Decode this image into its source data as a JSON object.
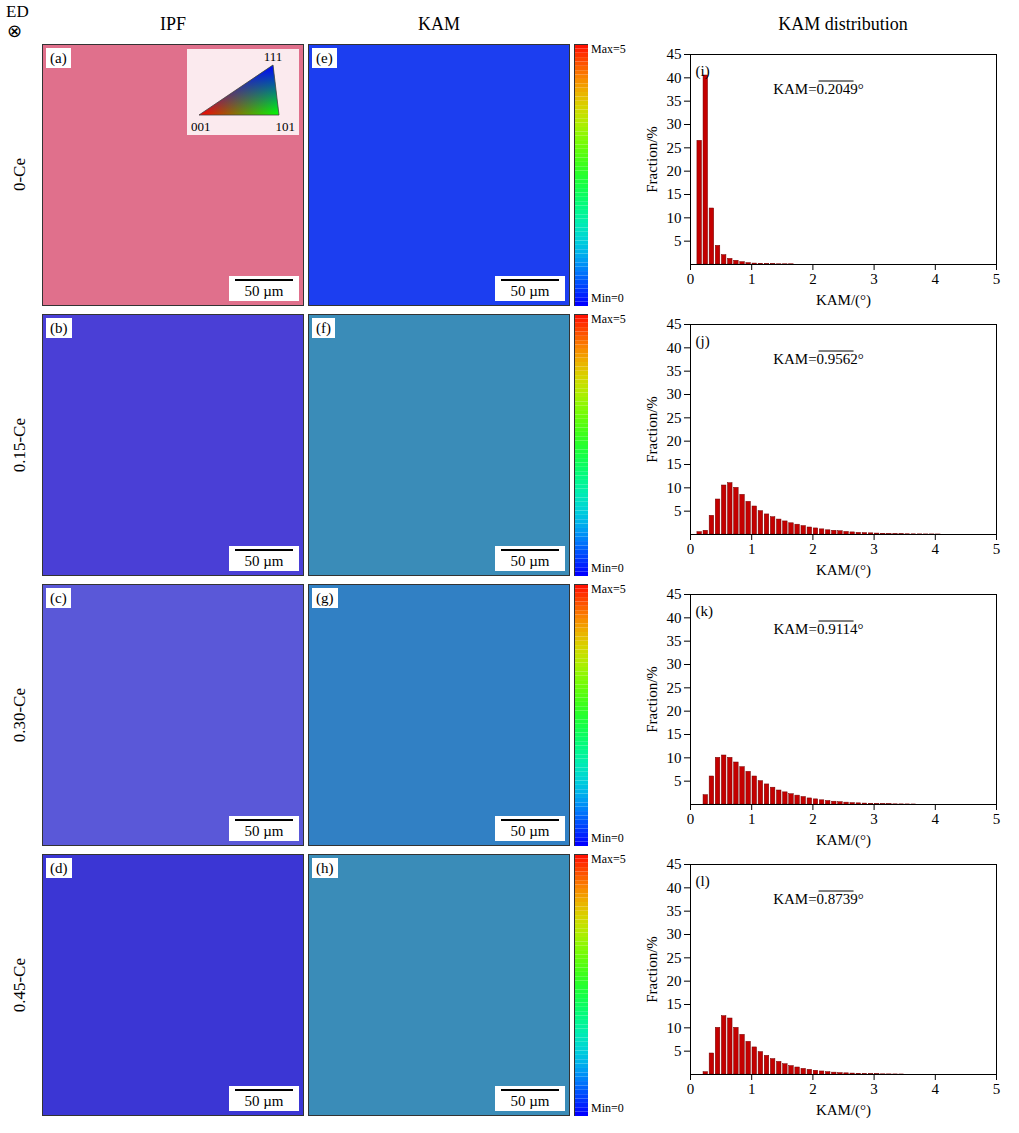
{
  "figure": {
    "corner": {
      "label": "ED",
      "symbol": "⊗"
    },
    "columns": [
      "IPF",
      "KAM",
      "KAM distribution"
    ],
    "ipf_key": [
      "001",
      "101",
      "111"
    ],
    "kam_colorbar": {
      "range": [
        0,
        5
      ],
      "max_label": "Max=5",
      "min_label": "Min=0"
    },
    "rows": [
      {
        "label": "0-Ce",
        "ipf": {
          "panel": "(a)",
          "color": "#e0708c",
          "scale_bar": "50 µm"
        },
        "kam": {
          "panel": "(e)",
          "color": "#1c3ef0",
          "scale_bar": "50 µm"
        }
      },
      {
        "label": "0.15-Ce",
        "ipf": {
          "panel": "(b)",
          "color": "#4a3fd6",
          "scale_bar": "50 µm"
        },
        "kam": {
          "panel": "(f)",
          "color": "#3a8cb8",
          "scale_bar": "50 µm"
        }
      },
      {
        "label": "0.30-Ce",
        "ipf": {
          "panel": "(c)",
          "color": "#5a58d8",
          "scale_bar": "50 µm"
        },
        "kam": {
          "panel": "(g)",
          "color": "#3180c4",
          "scale_bar": "50 µm"
        }
      },
      {
        "label": "0.45-Ce",
        "ipf": {
          "panel": "(d)",
          "color": "#3b36d4",
          "scale_bar": "50 µm"
        },
        "kam": {
          "panel": "(h)",
          "color": "#3a8cb8",
          "scale_bar": "50 µm"
        }
      }
    ]
  },
  "chart_data": [
    {
      "type": "histogram",
      "panel": "(i)",
      "annotation": "KAM=0.2049°",
      "x_label": "KAM/(°)",
      "y_label": "Fraction/%",
      "color": "#c40000",
      "bins": [
        0,
        0.1,
        0.2,
        0.3,
        0.4,
        0.5,
        0.6,
        0.7,
        0.8,
        0.9,
        1,
        1.1,
        1.2,
        1.3,
        1.4,
        1.5,
        1.6,
        1.7,
        1.8,
        1.9,
        2,
        2.1,
        2.2,
        2.3,
        2.4,
        2.5,
        2.6,
        2.7,
        2.8,
        2.9,
        3,
        3.1,
        3.2,
        3.3,
        3.4,
        3.5,
        3.6,
        3.7,
        3.8,
        3.9,
        4,
        4.1,
        4.2,
        4.3,
        4.4,
        4.5,
        4.6,
        4.7,
        4.8,
        4.9,
        5
      ],
      "counts": [
        0,
        26.5,
        40.5,
        12,
        4,
        2,
        1.2,
        0.8,
        0.5,
        0.3,
        0.2,
        0.15,
        0.1,
        0.1,
        0.05,
        0.05,
        0.05,
        0,
        0,
        0,
        0,
        0,
        0,
        0,
        0,
        0,
        0,
        0,
        0,
        0,
        0,
        0,
        0,
        0,
        0,
        0,
        0,
        0,
        0,
        0,
        0,
        0,
        0,
        0,
        0,
        0,
        0,
        0,
        0,
        0
      ],
      "xlim": [
        0,
        5
      ],
      "ylim": [
        0,
        45
      ],
      "xticks": [
        0,
        1,
        2,
        3,
        4,
        5
      ],
      "yticks": [
        5,
        10,
        15,
        20,
        25,
        30,
        35,
        40,
        45
      ]
    },
    {
      "type": "histogram",
      "panel": "(j)",
      "annotation": "KAM=0.9562°",
      "x_label": "KAM/(°)",
      "y_label": "Fraction/%",
      "color": "#c40000",
      "bins": [
        0,
        0.1,
        0.2,
        0.3,
        0.4,
        0.5,
        0.6,
        0.7,
        0.8,
        0.9,
        1,
        1.1,
        1.2,
        1.3,
        1.4,
        1.5,
        1.6,
        1.7,
        1.8,
        1.9,
        2,
        2.1,
        2.2,
        2.3,
        2.4,
        2.5,
        2.6,
        2.7,
        2.8,
        2.9,
        3,
        3.1,
        3.2,
        3.3,
        3.4,
        3.5,
        3.6,
        3.7,
        3.8,
        3.9,
        4,
        4.1,
        4.2,
        4.3,
        4.4,
        4.5,
        4.6,
        4.7,
        4.8,
        4.9,
        5
      ],
      "counts": [
        0,
        0.5,
        0.8,
        4,
        7.5,
        10.5,
        11,
        10,
        8.5,
        7,
        6,
        5,
        4.3,
        3.7,
        3.2,
        2.8,
        2.4,
        2.1,
        1.8,
        1.5,
        1.3,
        1.1,
        0.9,
        0.8,
        0.7,
        0.55,
        0.45,
        0.35,
        0.3,
        0.25,
        0.2,
        0.15,
        0.1,
        0.08,
        0.06,
        0.05,
        0.04,
        0.03,
        0.02,
        0.02,
        0.01,
        0,
        0,
        0,
        0,
        0,
        0,
        0,
        0,
        0
      ],
      "xlim": [
        0,
        5
      ],
      "ylim": [
        0,
        45
      ],
      "xticks": [
        0,
        1,
        2,
        3,
        4,
        5
      ],
      "yticks": [
        5,
        10,
        15,
        20,
        25,
        30,
        35,
        40,
        45
      ]
    },
    {
      "type": "histogram",
      "panel": "(k)",
      "annotation": "KAM=0.9114°",
      "x_label": "KAM/(°)",
      "y_label": "Fraction/%",
      "color": "#c40000",
      "bins": [
        0,
        0.1,
        0.2,
        0.3,
        0.4,
        0.5,
        0.6,
        0.7,
        0.8,
        0.9,
        1,
        1.1,
        1.2,
        1.3,
        1.4,
        1.5,
        1.6,
        1.7,
        1.8,
        1.9,
        2,
        2.1,
        2.2,
        2.3,
        2.4,
        2.5,
        2.6,
        2.7,
        2.8,
        2.9,
        3,
        3.1,
        3.2,
        3.3,
        3.4,
        3.5,
        3.6,
        3.7,
        3.8,
        3.9,
        4,
        4.1,
        4.2,
        4.3,
        4.4,
        4.5,
        4.6,
        4.7,
        4.8,
        4.9,
        5
      ],
      "counts": [
        0,
        0,
        2,
        6,
        10,
        10.5,
        10,
        9,
        8,
        7,
        6,
        5,
        4.3,
        3.6,
        3,
        2.6,
        2.2,
        1.9,
        1.6,
        1.3,
        1.1,
        0.9,
        0.75,
        0.6,
        0.5,
        0.4,
        0.3,
        0.25,
        0.2,
        0.15,
        0.1,
        0.08,
        0.06,
        0.04,
        0.03,
        0.02,
        0.01,
        0,
        0,
        0,
        0,
        0,
        0,
        0,
        0,
        0,
        0,
        0,
        0,
        0
      ],
      "xlim": [
        0,
        5
      ],
      "ylim": [
        0,
        45
      ],
      "xticks": [
        0,
        1,
        2,
        3,
        4,
        5
      ],
      "yticks": [
        5,
        10,
        15,
        20,
        25,
        30,
        35,
        40,
        45
      ]
    },
    {
      "type": "histogram",
      "panel": "(l)",
      "annotation": "KAM=0.8739°",
      "x_label": "KAM/(°)",
      "y_label": "Fraction/%",
      "color": "#c40000",
      "bins": [
        0,
        0.1,
        0.2,
        0.3,
        0.4,
        0.5,
        0.6,
        0.7,
        0.8,
        0.9,
        1,
        1.1,
        1.2,
        1.3,
        1.4,
        1.5,
        1.6,
        1.7,
        1.8,
        1.9,
        2,
        2.1,
        2.2,
        2.3,
        2.4,
        2.5,
        2.6,
        2.7,
        2.8,
        2.9,
        3,
        3.1,
        3.2,
        3.3,
        3.4,
        3.5,
        3.6,
        3.7,
        3.8,
        3.9,
        4,
        4.1,
        4.2,
        4.3,
        4.4,
        4.5,
        4.6,
        4.7,
        4.8,
        4.9,
        5
      ],
      "counts": [
        0,
        0,
        0.5,
        4.5,
        10,
        12.5,
        12,
        10,
        8.5,
        7,
        5.8,
        4.8,
        4,
        3.3,
        2.7,
        2.2,
        1.8,
        1.5,
        1.2,
        1,
        0.8,
        0.65,
        0.5,
        0.4,
        0.3,
        0.25,
        0.2,
        0.15,
        0.1,
        0.08,
        0.06,
        0.04,
        0.03,
        0.02,
        0.01,
        0,
        0,
        0,
        0,
        0,
        0,
        0,
        0,
        0,
        0,
        0,
        0,
        0,
        0,
        0
      ],
      "xlim": [
        0,
        5
      ],
      "ylim": [
        0,
        45
      ],
      "xticks": [
        0,
        1,
        2,
        3,
        4,
        5
      ],
      "yticks": [
        5,
        10,
        15,
        20,
        25,
        30,
        35,
        40,
        45
      ]
    }
  ]
}
